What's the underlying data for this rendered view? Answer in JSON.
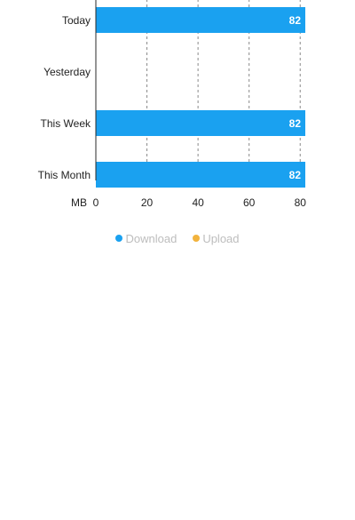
{
  "chart_data": {
    "type": "bar",
    "orientation": "horizontal",
    "categories": [
      "Today",
      "Yesterday",
      "This Week",
      "This Month"
    ],
    "series": [
      {
        "name": "Download",
        "values": [
          82,
          0,
          82,
          82
        ],
        "labels": [
          "82",
          "",
          "82",
          "82"
        ],
        "color": "#1aa1f0"
      },
      {
        "name": "Upload",
        "values": [
          0,
          0,
          0,
          0
        ],
        "labels": [
          "",
          "",
          "",
          ""
        ],
        "color": "#f2b33d"
      }
    ],
    "unit_label": "MB",
    "x_ticks": [
      "0",
      "20",
      "40",
      "60",
      "80"
    ],
    "xlim": [
      0,
      82
    ],
    "grid": "vertical dashed",
    "legend_position": "bottom-center"
  },
  "legend": {
    "items": [
      {
        "label": "Download",
        "color": "#1aa1f0"
      },
      {
        "label": "Upload",
        "color": "#f2b33d"
      }
    ]
  }
}
